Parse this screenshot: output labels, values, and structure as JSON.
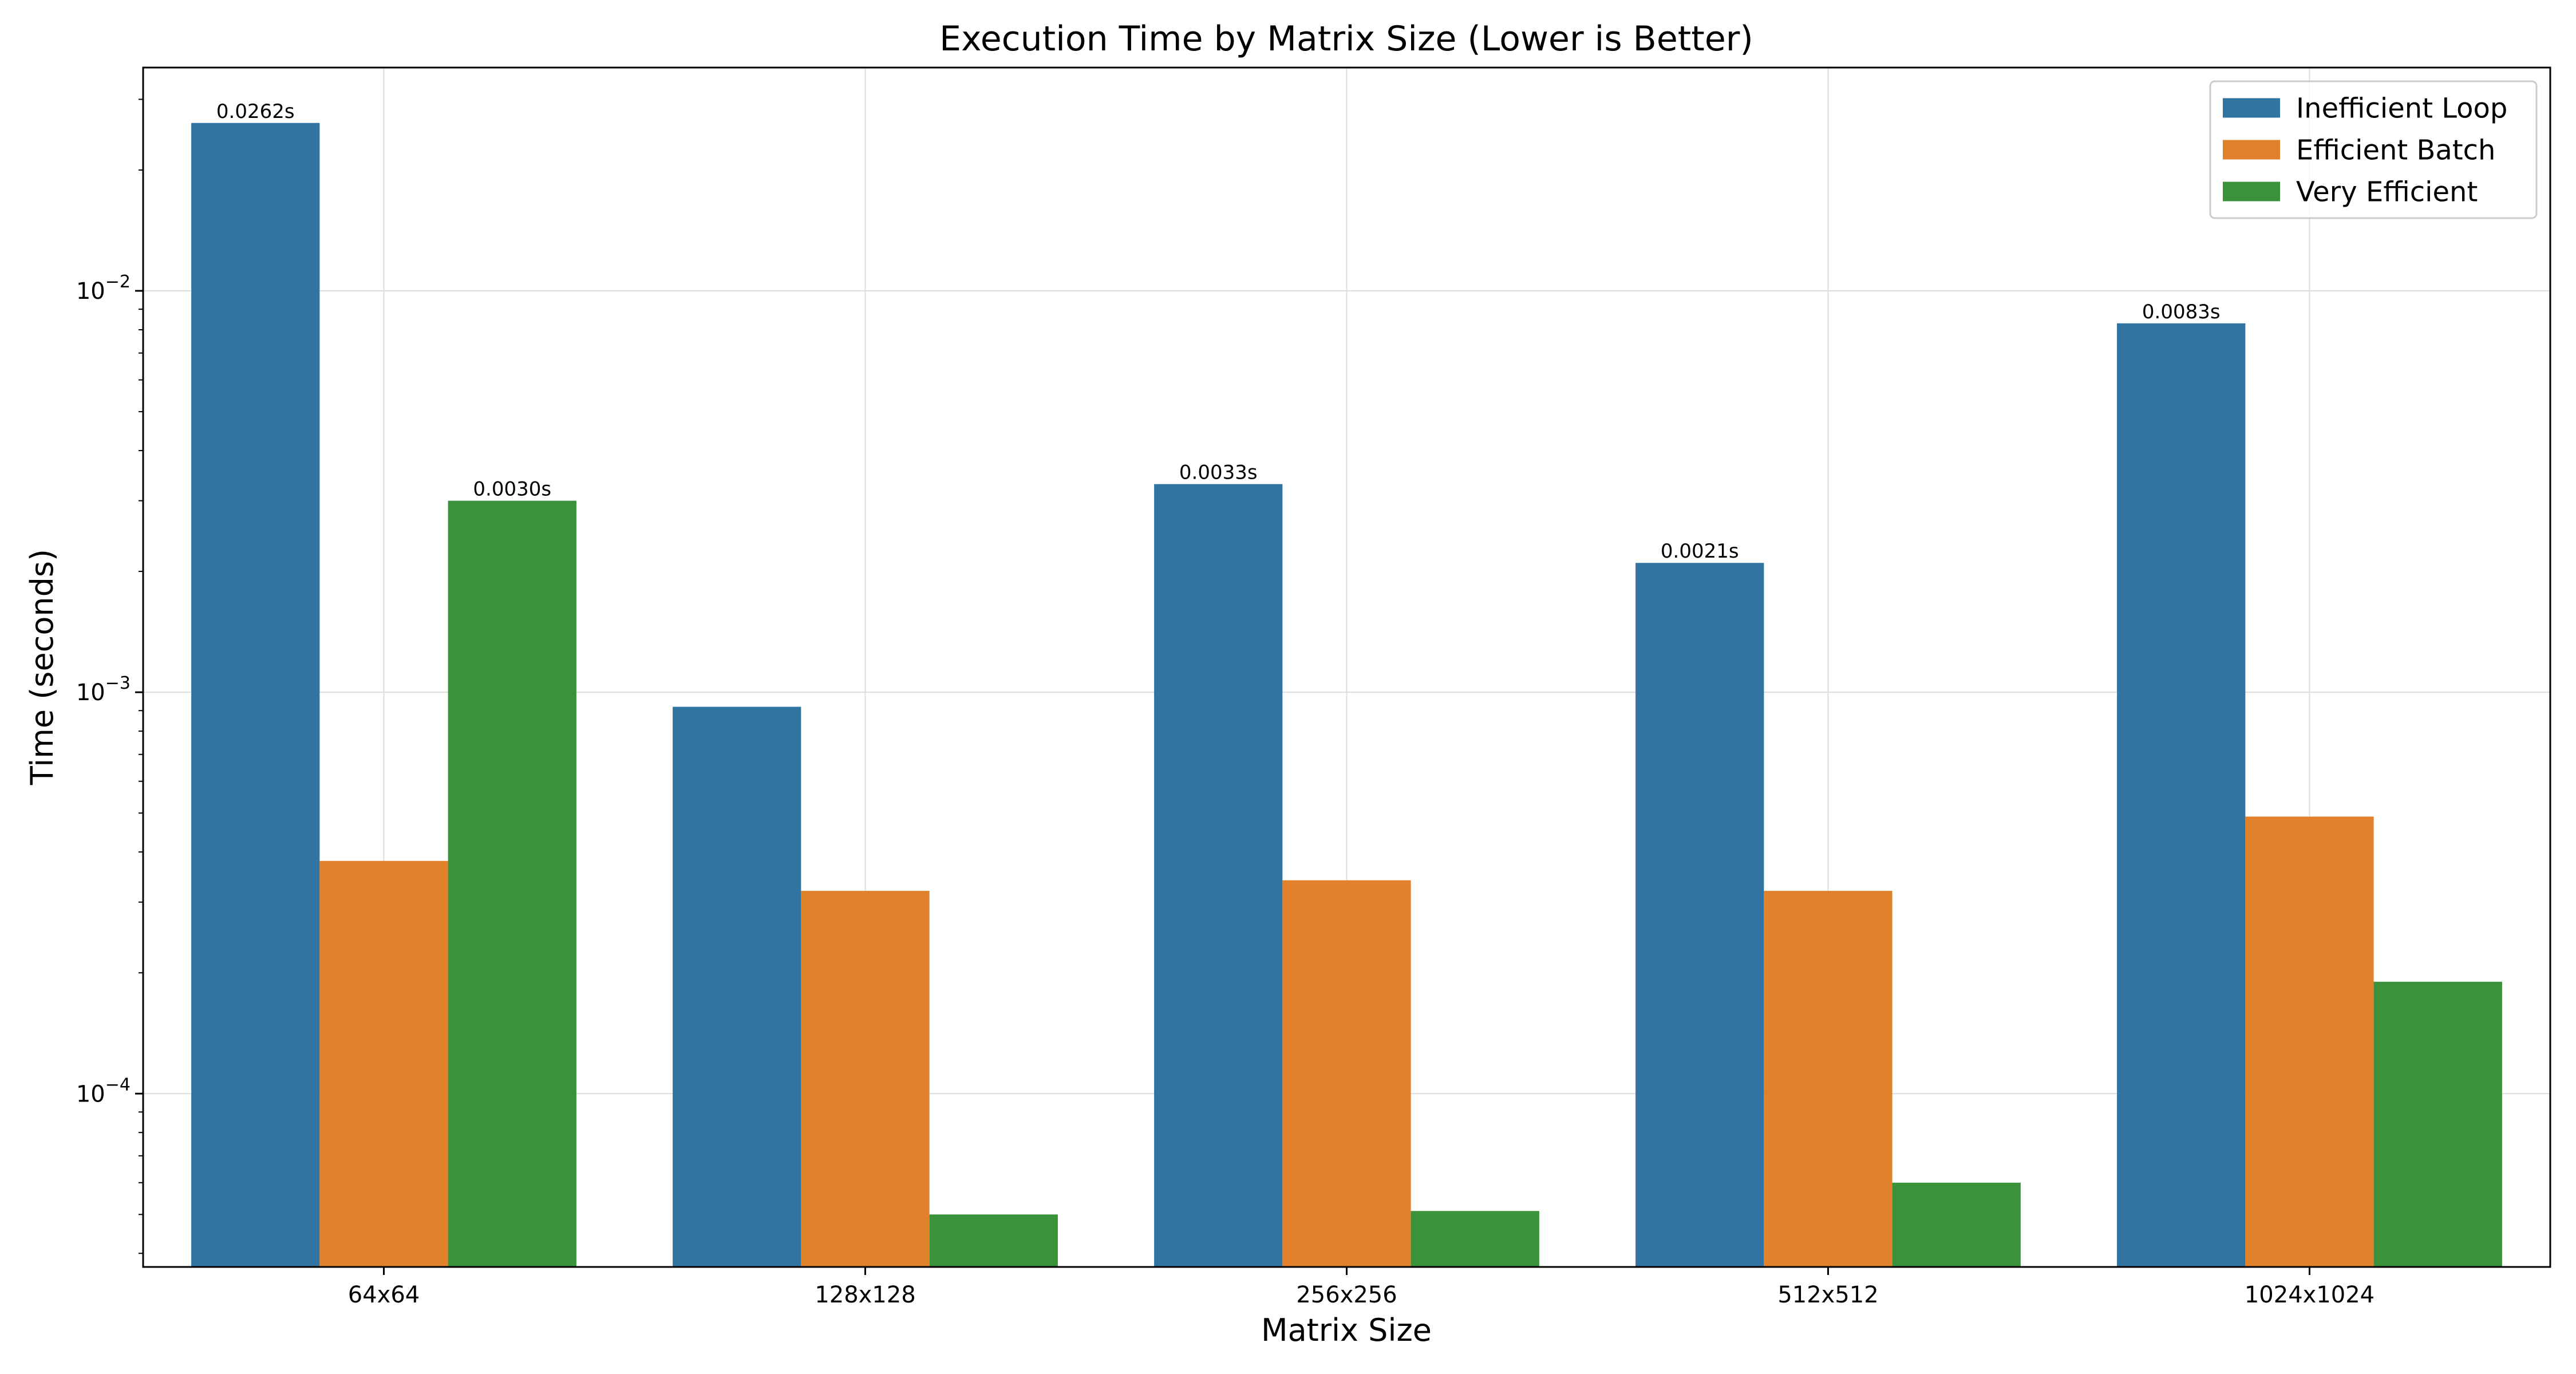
{
  "chart_data": {
    "type": "bar",
    "title": "Execution Time by Matrix Size (Lower is Better)",
    "xlabel": "Matrix Size",
    "ylabel": "Time (seconds)",
    "yscale": "log",
    "ylim": [
      3.7e-05,
      0.036
    ],
    "yticks": [
      {
        "value": 0.0001,
        "mantissa": "10",
        "exponent": "−4"
      },
      {
        "value": 0.001,
        "mantissa": "10",
        "exponent": "−3"
      },
      {
        "value": 0.01,
        "mantissa": "10",
        "exponent": "−2"
      }
    ],
    "grid": true,
    "legend_position": "top-right",
    "categories": [
      "64x64",
      "128x128",
      "256x256",
      "512x512",
      "1024x1024"
    ],
    "series": [
      {
        "name": "Inefficient Loop",
        "color": "#3274a1",
        "values": [
          0.0262,
          0.00092,
          0.0033,
          0.0021,
          0.0083
        ],
        "labels": [
          "0.0262s",
          null,
          "0.0033s",
          "0.0021s",
          "0.0083s"
        ]
      },
      {
        "name": "Efficient Batch",
        "color": "#e1812c",
        "values": [
          0.00038,
          0.00032,
          0.00034,
          0.00032,
          0.00049
        ],
        "labels": [
          null,
          null,
          null,
          null,
          null
        ]
      },
      {
        "name": "Very Efficient",
        "color": "#3a923a",
        "values": [
          0.003,
          5e-05,
          5.1e-05,
          6e-05,
          0.00019
        ],
        "labels": [
          "0.0030s",
          null,
          null,
          null,
          null
        ]
      }
    ]
  }
}
